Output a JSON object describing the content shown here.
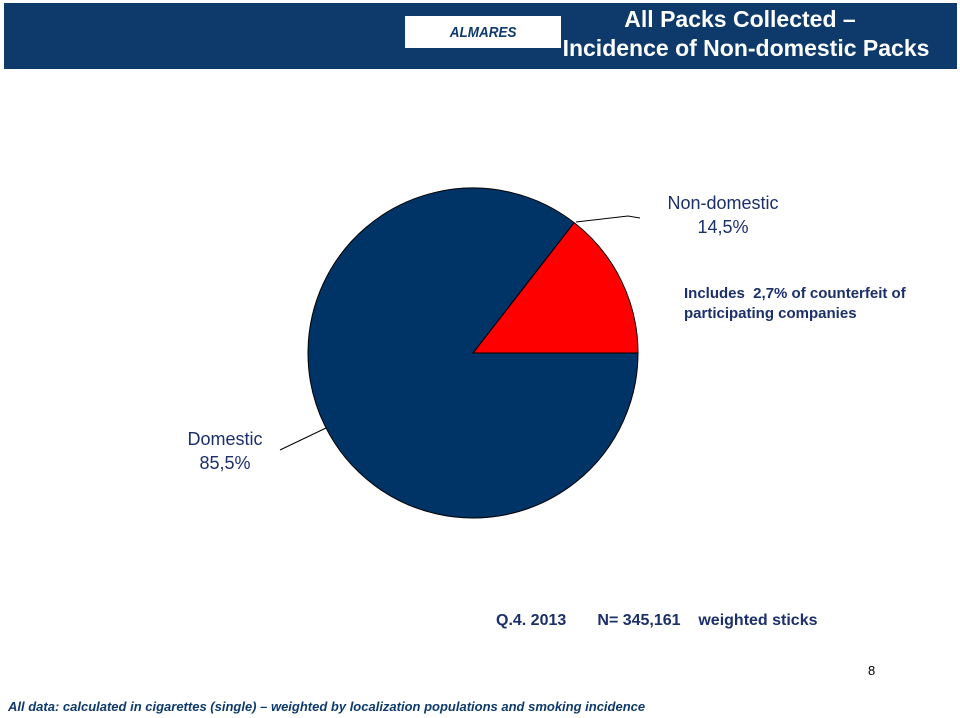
{
  "header": {
    "brand": "ALMARES",
    "title_line1": "All Packs Collected –",
    "title_line2": "Incidence of Non-domestic Packs"
  },
  "chart_data": {
    "type": "pie",
    "slices": [
      {
        "label": "Non-domestic",
        "value": 14.5,
        "display": "14,5%",
        "color": "#ff0000"
      },
      {
        "label": "Domestic",
        "value": 85.5,
        "display": "85,5%",
        "color": "#003366"
      }
    ],
    "annotation": "Includes  2,7% of counterfeit of participating companies"
  },
  "labels": {
    "non_domestic_name": "Non-domestic",
    "non_domestic_value": "14,5%",
    "domestic_name": "Domestic",
    "domestic_value": "85,5%",
    "note_line1": "Includes  2,7% of counterfeit of",
    "note_line2": "participating companies"
  },
  "footer": {
    "sample": "Q.4. 2013       N= 345,161    weighted sticks",
    "page_number": "8",
    "footnote": "All data: calculated in cigarettes (single) – weighted by localization populations and  smoking incidence"
  }
}
